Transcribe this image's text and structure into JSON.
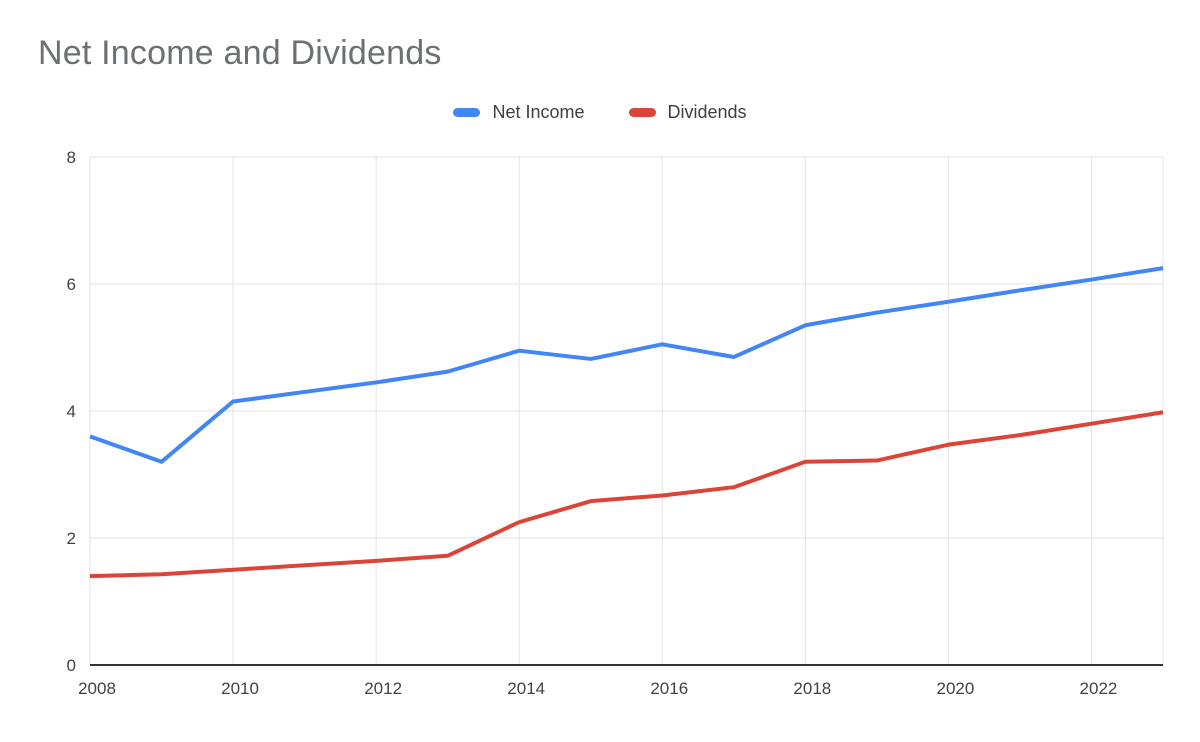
{
  "chart_data": {
    "type": "line",
    "title": "Net Income and Dividends",
    "x": [
      2008,
      2009,
      2010,
      2011,
      2012,
      2013,
      2014,
      2015,
      2016,
      2017,
      2018,
      2019,
      2020,
      2021,
      2022,
      2023
    ],
    "x_tick_labels": [
      "2008",
      "2010",
      "2012",
      "2014",
      "2016",
      "2018",
      "2020",
      "2022"
    ],
    "y_ticks": [
      0,
      2,
      4,
      6,
      8
    ],
    "ylim": [
      0,
      8
    ],
    "xlabel": "",
    "ylabel": "",
    "grid": true,
    "legend_position": "top",
    "background_color": "#ffffff",
    "gridline_color": "#e3e3e3",
    "axis_line_color": "#333333",
    "series": [
      {
        "name": "Net Income",
        "color": "#4285f4",
        "values": [
          3.6,
          3.2,
          4.15,
          4.3,
          4.45,
          4.62,
          4.95,
          4.82,
          5.05,
          4.85,
          5.35,
          5.55,
          5.72,
          5.9,
          6.07,
          6.25
        ]
      },
      {
        "name": "Dividends",
        "color": "#db4437",
        "values": [
          1.4,
          1.43,
          1.5,
          1.57,
          1.64,
          1.72,
          2.25,
          2.58,
          2.67,
          2.8,
          3.2,
          3.22,
          3.47,
          3.62,
          3.8,
          3.98
        ]
      }
    ]
  }
}
